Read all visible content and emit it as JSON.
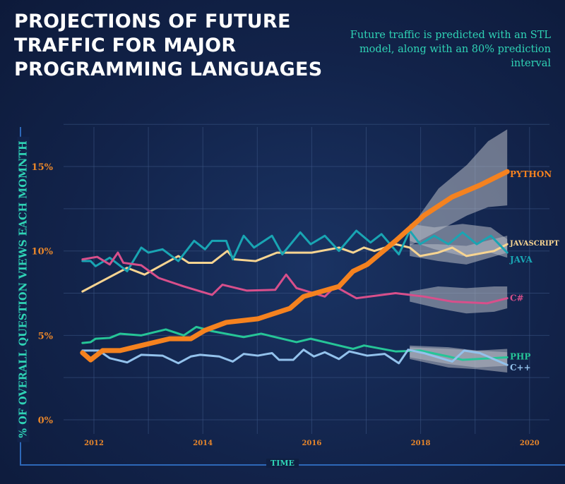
{
  "title": "PROJECTIONS OF FUTURE TRAFFIC FOR MAJOR PROGRAMMING LANGUAGES",
  "subtitle": "Future traffic is predicted with an STL model, along with an 80% prediction interval",
  "chart_data": {
    "type": "line",
    "title": "PROJECTIONS OF FUTURE TRAFFIC FOR MAJOR PROGRAMMING LANGUAGES",
    "subtitle": "Future traffic is predicted with an STL model, along with an 80% prediction interval",
    "xlabel": "TIME",
    "ylabel": "% OF OVERALL QUESTION VIEWS EACH MOMNTH",
    "xlim": [
      2011.4,
      2020.4
    ],
    "ylim": [
      0,
      17.5
    ],
    "x_ticks": [
      2012,
      2014,
      2016,
      2018,
      2020
    ],
    "x_tick_labels": [
      "2012",
      "2014",
      "2016",
      "2018",
      "2020"
    ],
    "y_ticks": [
      0,
      5,
      10,
      15
    ],
    "y_tick_labels": [
      "0%",
      "5%",
      "10%",
      "15%"
    ],
    "grid": true,
    "forecast_start": 2017.8,
    "series": [
      {
        "name": "PYTHON",
        "color": "#f5821f",
        "emphasis": true,
        "points": [
          [
            2011.79,
            3.97
          ],
          [
            2011.94,
            3.55
          ],
          [
            2012.16,
            4.1
          ],
          [
            2012.48,
            4.1
          ],
          [
            2012.87,
            4.4
          ],
          [
            2013.39,
            4.8
          ],
          [
            2013.78,
            4.8
          ],
          [
            2014.04,
            5.3
          ],
          [
            2014.43,
            5.77
          ],
          [
            2015.01,
            5.98
          ],
          [
            2015.6,
            6.6
          ],
          [
            2015.85,
            7.3
          ],
          [
            2016.5,
            7.9
          ],
          [
            2016.76,
            8.8
          ],
          [
            2017.02,
            9.2
          ],
          [
            2017.54,
            10.6
          ],
          [
            2018.06,
            12.1
          ],
          [
            2018.58,
            13.2
          ],
          [
            2019.09,
            13.9
          ],
          [
            2019.59,
            14.7
          ]
        ],
        "interval": [
          [
            2017.8,
            10.3,
            11.3
          ],
          [
            2018.33,
            11.2,
            13.7
          ],
          [
            2018.85,
            12.1,
            15.1
          ],
          [
            2019.24,
            12.6,
            16.5
          ],
          [
            2019.59,
            12.7,
            17.2
          ]
        ]
      },
      {
        "name": "JAVASCRIPT",
        "color": "#f7d491",
        "points": [
          [
            2011.79,
            7.6
          ],
          [
            2012.61,
            9.0
          ],
          [
            2012.93,
            8.6
          ],
          [
            2013.55,
            9.7
          ],
          [
            2013.74,
            9.3
          ],
          [
            2014.17,
            9.3
          ],
          [
            2014.45,
            10.0
          ],
          [
            2014.58,
            9.5
          ],
          [
            2014.97,
            9.4
          ],
          [
            2015.36,
            9.9
          ],
          [
            2016.0,
            9.9
          ],
          [
            2016.5,
            10.2
          ],
          [
            2016.76,
            9.9
          ],
          [
            2016.96,
            10.2
          ],
          [
            2017.15,
            10.0
          ],
          [
            2017.54,
            10.4
          ],
          [
            2017.8,
            10.2
          ],
          [
            2017.99,
            9.7
          ],
          [
            2018.32,
            9.9
          ],
          [
            2018.58,
            10.2
          ],
          [
            2018.84,
            9.7
          ],
          [
            2019.35,
            10.0
          ],
          [
            2019.59,
            10.4
          ]
        ],
        "interval": [
          [
            2017.8,
            9.7,
            10.4
          ],
          [
            2018.32,
            9.4,
            10.4
          ],
          [
            2018.84,
            9.2,
            10.3
          ],
          [
            2019.59,
            9.9,
            10.9
          ]
        ]
      },
      {
        "name": "JAVA",
        "color": "#19a5b3",
        "points": [
          [
            2011.79,
            9.4
          ],
          [
            2011.94,
            9.4
          ],
          [
            2012.03,
            9.1
          ],
          [
            2012.29,
            9.6
          ],
          [
            2012.61,
            8.8
          ],
          [
            2012.87,
            10.2
          ],
          [
            2013.0,
            9.9
          ],
          [
            2013.26,
            10.1
          ],
          [
            2013.55,
            9.4
          ],
          [
            2013.84,
            10.6
          ],
          [
            2014.04,
            10.1
          ],
          [
            2014.17,
            10.6
          ],
          [
            2014.43,
            10.6
          ],
          [
            2014.55,
            9.5
          ],
          [
            2014.75,
            10.9
          ],
          [
            2014.94,
            10.2
          ],
          [
            2015.27,
            10.9
          ],
          [
            2015.46,
            9.8
          ],
          [
            2015.79,
            11.1
          ],
          [
            2015.98,
            10.4
          ],
          [
            2016.24,
            10.9
          ],
          [
            2016.5,
            10.0
          ],
          [
            2016.82,
            11.2
          ],
          [
            2017.08,
            10.5
          ],
          [
            2017.28,
            11.0
          ],
          [
            2017.6,
            9.8
          ],
          [
            2017.8,
            11.2
          ],
          [
            2017.99,
            10.4
          ],
          [
            2018.25,
            10.9
          ],
          [
            2018.51,
            10.4
          ],
          [
            2018.77,
            11.1
          ],
          [
            2019.03,
            10.4
          ],
          [
            2019.29,
            10.9
          ],
          [
            2019.59,
            9.9
          ]
        ],
        "interval": [
          [
            2017.8,
            10.6,
            11.6
          ],
          [
            2018.25,
            10.1,
            11.4
          ],
          [
            2018.77,
            9.7,
            11.6
          ],
          [
            2019.29,
            9.9,
            11.4
          ],
          [
            2019.59,
            9.6,
            10.7
          ]
        ]
      },
      {
        "name": "C#",
        "color": "#d84f8b",
        "points": [
          [
            2011.79,
            9.5
          ],
          [
            2012.06,
            9.65
          ],
          [
            2012.29,
            9.2
          ],
          [
            2012.44,
            9.9
          ],
          [
            2012.54,
            9.3
          ],
          [
            2012.87,
            9.15
          ],
          [
            2013.19,
            8.4
          ],
          [
            2013.65,
            7.9
          ],
          [
            2014.17,
            7.4
          ],
          [
            2014.36,
            8.0
          ],
          [
            2014.81,
            7.65
          ],
          [
            2015.33,
            7.7
          ],
          [
            2015.53,
            8.6
          ],
          [
            2015.72,
            7.8
          ],
          [
            2016.24,
            7.3
          ],
          [
            2016.43,
            7.9
          ],
          [
            2016.82,
            7.2
          ],
          [
            2017.54,
            7.5
          ],
          [
            2018.06,
            7.3
          ],
          [
            2018.58,
            7.0
          ],
          [
            2019.22,
            6.9
          ],
          [
            2019.59,
            7.2
          ]
        ],
        "interval": [
          [
            2017.8,
            7.0,
            7.6
          ],
          [
            2018.32,
            6.6,
            7.9
          ],
          [
            2018.84,
            6.3,
            7.8
          ],
          [
            2019.35,
            6.4,
            7.9
          ],
          [
            2019.59,
            6.6,
            7.9
          ]
        ]
      },
      {
        "name": "PHP",
        "color": "#26c597",
        "points": [
          [
            2011.79,
            4.55
          ],
          [
            2011.94,
            4.6
          ],
          [
            2012.03,
            4.8
          ],
          [
            2012.29,
            4.85
          ],
          [
            2012.48,
            5.1
          ],
          [
            2012.87,
            5.0
          ],
          [
            2013.32,
            5.35
          ],
          [
            2013.65,
            5.0
          ],
          [
            2013.88,
            5.5
          ],
          [
            2014.17,
            5.25
          ],
          [
            2014.75,
            4.9
          ],
          [
            2015.07,
            5.1
          ],
          [
            2015.72,
            4.6
          ],
          [
            2015.98,
            4.8
          ],
          [
            2016.37,
            4.5
          ],
          [
            2016.76,
            4.2
          ],
          [
            2016.96,
            4.4
          ],
          [
            2017.54,
            4.05
          ],
          [
            2017.99,
            4.1
          ],
          [
            2018.51,
            3.75
          ],
          [
            2018.77,
            3.55
          ],
          [
            2019.59,
            3.7
          ]
        ],
        "interval": [
          [
            2017.8,
            3.7,
            4.3
          ],
          [
            2018.51,
            3.3,
            4.2
          ],
          [
            2019.03,
            3.1,
            4.1
          ],
          [
            2019.59,
            3.2,
            4.2
          ]
        ]
      },
      {
        "name": "C++",
        "color": "#93c2ec",
        "points": [
          [
            2011.79,
            4.1
          ],
          [
            2012.09,
            4.1
          ],
          [
            2012.29,
            3.65
          ],
          [
            2012.61,
            3.4
          ],
          [
            2012.87,
            3.85
          ],
          [
            2013.26,
            3.8
          ],
          [
            2013.55,
            3.35
          ],
          [
            2013.78,
            3.75
          ],
          [
            2013.95,
            3.85
          ],
          [
            2014.3,
            3.75
          ],
          [
            2014.55,
            3.45
          ],
          [
            2014.75,
            3.9
          ],
          [
            2015.01,
            3.8
          ],
          [
            2015.27,
            3.95
          ],
          [
            2015.4,
            3.55
          ],
          [
            2015.66,
            3.55
          ],
          [
            2015.85,
            4.15
          ],
          [
            2016.04,
            3.75
          ],
          [
            2016.24,
            4.0
          ],
          [
            2016.5,
            3.6
          ],
          [
            2016.69,
            4.05
          ],
          [
            2017.02,
            3.8
          ],
          [
            2017.34,
            3.9
          ],
          [
            2017.6,
            3.35
          ],
          [
            2017.77,
            4.15
          ],
          [
            2018.06,
            3.95
          ],
          [
            2018.58,
            3.45
          ],
          [
            2018.8,
            4.1
          ],
          [
            2019.09,
            3.95
          ],
          [
            2019.59,
            3.25
          ]
        ],
        "interval": [
          [
            2017.8,
            3.6,
            4.4
          ],
          [
            2018.51,
            3.1,
            4.3
          ],
          [
            2019.03,
            3.0,
            4.1
          ],
          [
            2019.59,
            2.8,
            4.0
          ]
        ]
      }
    ]
  }
}
